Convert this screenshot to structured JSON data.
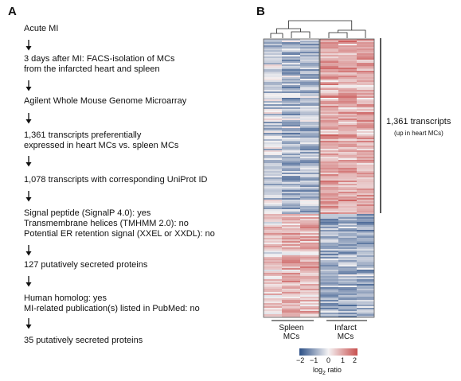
{
  "panel_a": {
    "letter": "A",
    "steps": [
      {
        "lines": [
          "Acute MI"
        ]
      },
      {
        "lines": [
          "3 days after MI: FACS-isolation of MCs",
          "from the infarcted heart and spleen"
        ]
      },
      {
        "lines": [
          "Agilent Whole Mouse Genome Microarray"
        ]
      },
      {
        "lines": [
          "1,361 transcripts preferentially",
          "expressed in heart MCs vs. spleen MCs"
        ]
      },
      {
        "lines": [
          "1,078 transcripts with corresponding UniProt ID"
        ]
      },
      {
        "lines": [
          "Signal peptide (SignalP 4.0): yes",
          "Transmembrane helices (TMHMM 2.0): no",
          "Potential ER retention signal (XXEL or XXDL): no"
        ]
      },
      {
        "lines": [
          "127 putatively secreted proteins"
        ]
      },
      {
        "lines": [
          "Human homolog: yes",
          "MI-related publication(s) listed in PubMed: no"
        ]
      },
      {
        "lines": [
          "35 putatively secreted proteins"
        ]
      }
    ]
  },
  "panel_b": {
    "letter": "B",
    "annotation": {
      "main": "1,361 transcripts",
      "sub": "(up in heart MCs)"
    },
    "groups": [
      {
        "line1": "Spleen",
        "line2": "MCs"
      },
      {
        "line1": "Infarct",
        "line2": "MCs"
      }
    ],
    "colorbar": {
      "ticks": [
        "−2",
        "−1",
        "0",
        "1",
        "2"
      ],
      "title": "log",
      "title_sub": "2",
      "title_suffix": " ratio",
      "low_color": "#2b4f86",
      "mid_color": "#f4f2f3",
      "high_color": "#c8504f"
    }
  }
}
